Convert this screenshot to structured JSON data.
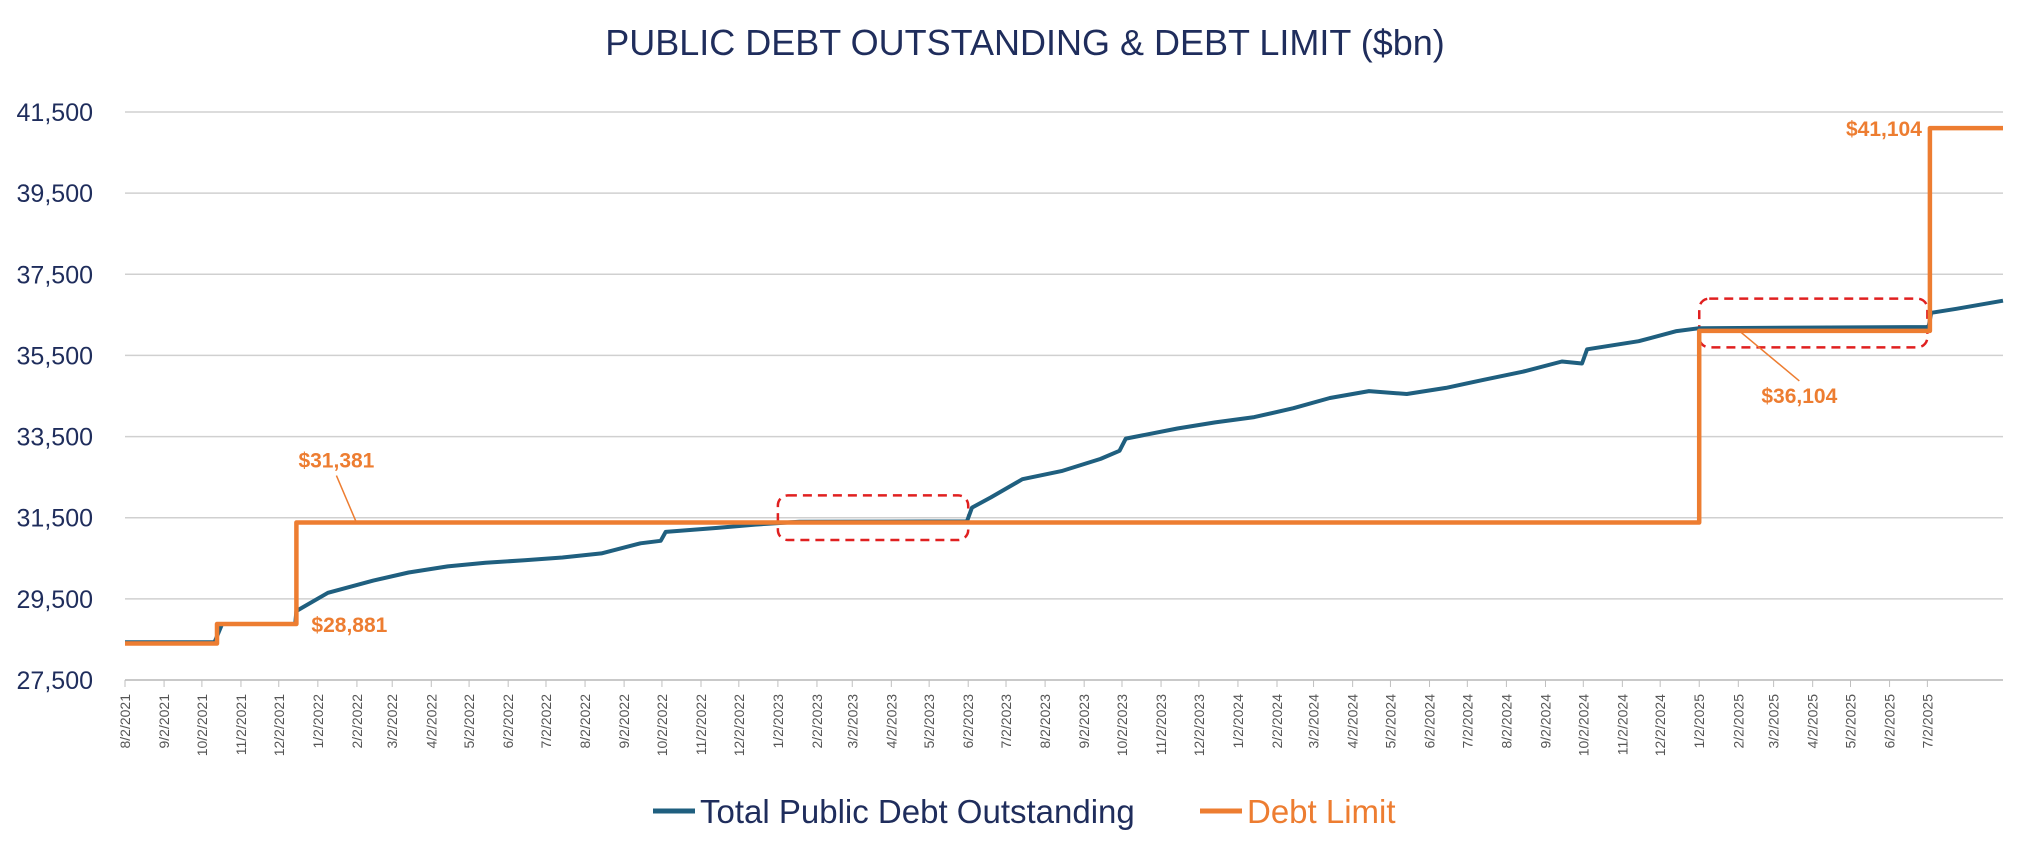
{
  "chart_data": {
    "type": "line",
    "title": "PUBLIC DEBT OUTSTANDING  & DEBT LIMIT ($bn)",
    "xlabel": "",
    "ylabel": "",
    "ylim": [
      27500,
      41500
    ],
    "y_ticks": [
      "27,500",
      "29,500",
      "31,500",
      "33,500",
      "35,500",
      "37,500",
      "39,500",
      "41,500"
    ],
    "y_tick_values": [
      27500,
      29500,
      31500,
      33500,
      35500,
      37500,
      39500,
      41500
    ],
    "x_range": [
      "2021-08-02",
      "2025-08-31"
    ],
    "x_ticks": [
      "8/2/2021",
      "9/2/2021",
      "10/2/2021",
      "11/2/2021",
      "12/2/2021",
      "1/2/2022",
      "2/2/2022",
      "3/2/2022",
      "4/2/2022",
      "5/2/2022",
      "6/2/2022",
      "7/2/2022",
      "8/2/2022",
      "9/2/2022",
      "10/2/2022",
      "11/2/2022",
      "12/2/2022",
      "1/2/2023",
      "2/2/2023",
      "3/2/2023",
      "4/2/2023",
      "5/2/2023",
      "6/2/2023",
      "7/2/2023",
      "8/2/2023",
      "9/2/2023",
      "10/2/2023",
      "11/2/2023",
      "12/2/2023",
      "1/2/2024",
      "2/2/2024",
      "3/2/2024",
      "4/2/2024",
      "5/2/2024",
      "6/2/2024",
      "7/2/2024",
      "8/2/2024",
      "9/2/2024",
      "10/2/2024",
      "11/2/2024",
      "12/2/2024",
      "1/2/2025",
      "2/2/2025",
      "3/2/2025",
      "4/2/2025",
      "5/2/2025",
      "6/2/2025",
      "7/2/2025"
    ],
    "grid": true,
    "legend_position": "bottom",
    "series": [
      {
        "name": "Total Public Debt Outstanding",
        "color": "#1f5f7f",
        "points": [
          [
            "2021-08-02",
            28430
          ],
          [
            "2021-10-12",
            28430
          ],
          [
            "2021-10-18",
            28880
          ],
          [
            "2021-12-15",
            28880
          ],
          [
            "2021-12-16",
            29200
          ],
          [
            "2022-01-10",
            29650
          ],
          [
            "2022-02-15",
            29950
          ],
          [
            "2022-03-15",
            30150
          ],
          [
            "2022-04-15",
            30300
          ],
          [
            "2022-05-15",
            30390
          ],
          [
            "2022-06-15",
            30450
          ],
          [
            "2022-07-15",
            30520
          ],
          [
            "2022-08-15",
            30620
          ],
          [
            "2022-09-15",
            30870
          ],
          [
            "2022-10-01",
            30930
          ],
          [
            "2022-10-05",
            31150
          ],
          [
            "2022-11-15",
            31250
          ],
          [
            "2022-12-15",
            31330
          ],
          [
            "2023-01-19",
            31400
          ],
          [
            "2023-06-01",
            31410
          ],
          [
            "2023-06-05",
            31750
          ],
          [
            "2023-06-20",
            32000
          ],
          [
            "2023-07-15",
            32450
          ],
          [
            "2023-08-15",
            32650
          ],
          [
            "2023-09-15",
            32950
          ],
          [
            "2023-09-30",
            33150
          ],
          [
            "2023-10-05",
            33450
          ],
          [
            "2023-11-15",
            33700
          ],
          [
            "2023-12-15",
            33850
          ],
          [
            "2024-01-15",
            33980
          ],
          [
            "2024-02-15",
            34200
          ],
          [
            "2024-03-15",
            34450
          ],
          [
            "2024-04-15",
            34620
          ],
          [
            "2024-05-15",
            34550
          ],
          [
            "2024-06-15",
            34700
          ],
          [
            "2024-07-15",
            34900
          ],
          [
            "2024-08-15",
            35100
          ],
          [
            "2024-09-15",
            35350
          ],
          [
            "2024-10-01",
            35300
          ],
          [
            "2024-10-05",
            35650
          ],
          [
            "2024-11-15",
            35850
          ],
          [
            "2024-12-15",
            36100
          ],
          [
            "2025-01-02",
            36170
          ],
          [
            "2025-07-03",
            36200
          ],
          [
            "2025-07-05",
            36550
          ],
          [
            "2025-07-25",
            36650
          ],
          [
            "2025-08-31",
            36850
          ]
        ]
      },
      {
        "name": "Debt Limit",
        "color": "#ed7d31",
        "points": [
          [
            "2021-08-02",
            28400
          ],
          [
            "2021-10-14",
            28400
          ],
          [
            "2021-10-14",
            28881
          ],
          [
            "2021-12-16",
            28881
          ],
          [
            "2021-12-16",
            31381
          ],
          [
            "2025-01-02",
            31381
          ],
          [
            "2025-01-02",
            36104
          ],
          [
            "2025-07-04",
            36104
          ],
          [
            "2025-07-04",
            41104
          ],
          [
            "2025-08-31",
            41104
          ]
        ]
      }
    ],
    "annotations": [
      {
        "text": "$31,381",
        "x": "2021-12-16",
        "y": 31381,
        "color": "#ed7d31"
      },
      {
        "text": "$28,881",
        "x": "2021-12-16",
        "y": 28881,
        "color": "#ed7d31"
      },
      {
        "text": "$36,104",
        "x": "2025-01-10",
        "y": 36104,
        "color": "#ed7d31"
      },
      {
        "text": "$41,104",
        "x": "2025-07-04",
        "y": 41104,
        "color": "#ed7d31"
      }
    ],
    "highlight_boxes": [
      {
        "x_start": "2023-01-02",
        "x_end": "2023-06-02",
        "y_start": 30950,
        "y_end": 32050,
        "color": "#e02020"
      },
      {
        "x_start": "2025-01-02",
        "x_end": "2025-07-02",
        "y_start": 35700,
        "y_end": 36900,
        "color": "#e02020"
      }
    ]
  }
}
